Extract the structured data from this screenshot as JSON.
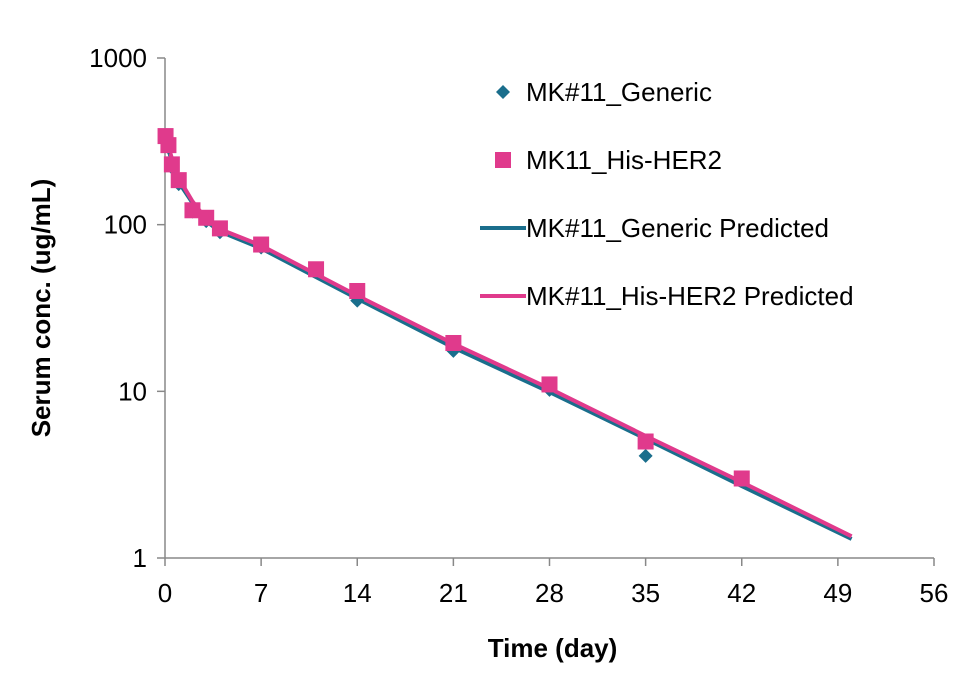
{
  "chart_data": {
    "type": "scatter",
    "xlabel": "Time (day)",
    "ylabel": "Serum conc. (ug/mL)",
    "xlim": [
      0,
      56
    ],
    "ylim": [
      1,
      1000
    ],
    "y_scale": "log",
    "x_ticks": [
      "0",
      "7",
      "14",
      "21",
      "28",
      "35",
      "42",
      "49",
      "56"
    ],
    "y_ticks": [
      "1",
      "10",
      "100",
      "1000"
    ],
    "grid": false,
    "legend_position": "top-right",
    "colors": {
      "generic": "#1a6e8c",
      "his_her2": "#e03a8c"
    },
    "series": [
      {
        "name": "MK#11_Generic",
        "kind": "markers",
        "marker": "diamond",
        "color": "#1a6e8c",
        "points": [
          [
            0.04,
            320
          ],
          [
            0.25,
            290
          ],
          [
            0.5,
            220
          ],
          [
            1,
            175
          ],
          [
            2,
            120
          ],
          [
            3,
            105
          ],
          [
            4,
            90
          ],
          [
            7,
            73
          ],
          [
            11,
            52
          ],
          [
            14,
            35
          ],
          [
            21,
            17.5
          ],
          [
            28,
            10.2
          ],
          [
            35,
            4.1
          ],
          [
            42,
            2.9
          ]
        ]
      },
      {
        "name": "MK11_His-HER2",
        "kind": "markers",
        "marker": "square",
        "color": "#e03a8c",
        "points": [
          [
            0.04,
            340
          ],
          [
            0.25,
            300
          ],
          [
            0.5,
            230
          ],
          [
            1,
            185
          ],
          [
            2,
            122
          ],
          [
            3,
            110
          ],
          [
            4,
            95
          ],
          [
            7,
            76
          ],
          [
            11,
            54
          ],
          [
            14,
            40
          ],
          [
            21,
            19.5
          ],
          [
            28,
            11
          ],
          [
            35,
            5
          ],
          [
            42,
            3
          ]
        ]
      },
      {
        "name": "MK#11_Generic Predicted",
        "kind": "line",
        "color": "#1a6e8c",
        "points": [
          [
            0,
            330
          ],
          [
            0.5,
            240
          ],
          [
            1,
            180
          ],
          [
            2,
            135
          ],
          [
            3,
            105
          ],
          [
            4,
            91
          ],
          [
            7,
            72
          ],
          [
            14,
            36
          ],
          [
            21,
            18.3
          ],
          [
            28,
            9.9
          ],
          [
            35,
            5.2
          ],
          [
            42,
            2.7
          ],
          [
            50,
            1.3
          ]
        ]
      },
      {
        "name": "MK#11_His-HER2 Predicted",
        "kind": "line",
        "color": "#e03a8c",
        "points": [
          [
            0,
            345
          ],
          [
            0.5,
            250
          ],
          [
            1,
            190
          ],
          [
            2,
            138
          ],
          [
            3,
            108
          ],
          [
            4,
            94
          ],
          [
            7,
            75
          ],
          [
            14,
            37.5
          ],
          [
            21,
            19.3
          ],
          [
            28,
            10.4
          ],
          [
            35,
            5.4
          ],
          [
            42,
            2.85
          ],
          [
            50,
            1.35
          ]
        ]
      }
    ]
  }
}
